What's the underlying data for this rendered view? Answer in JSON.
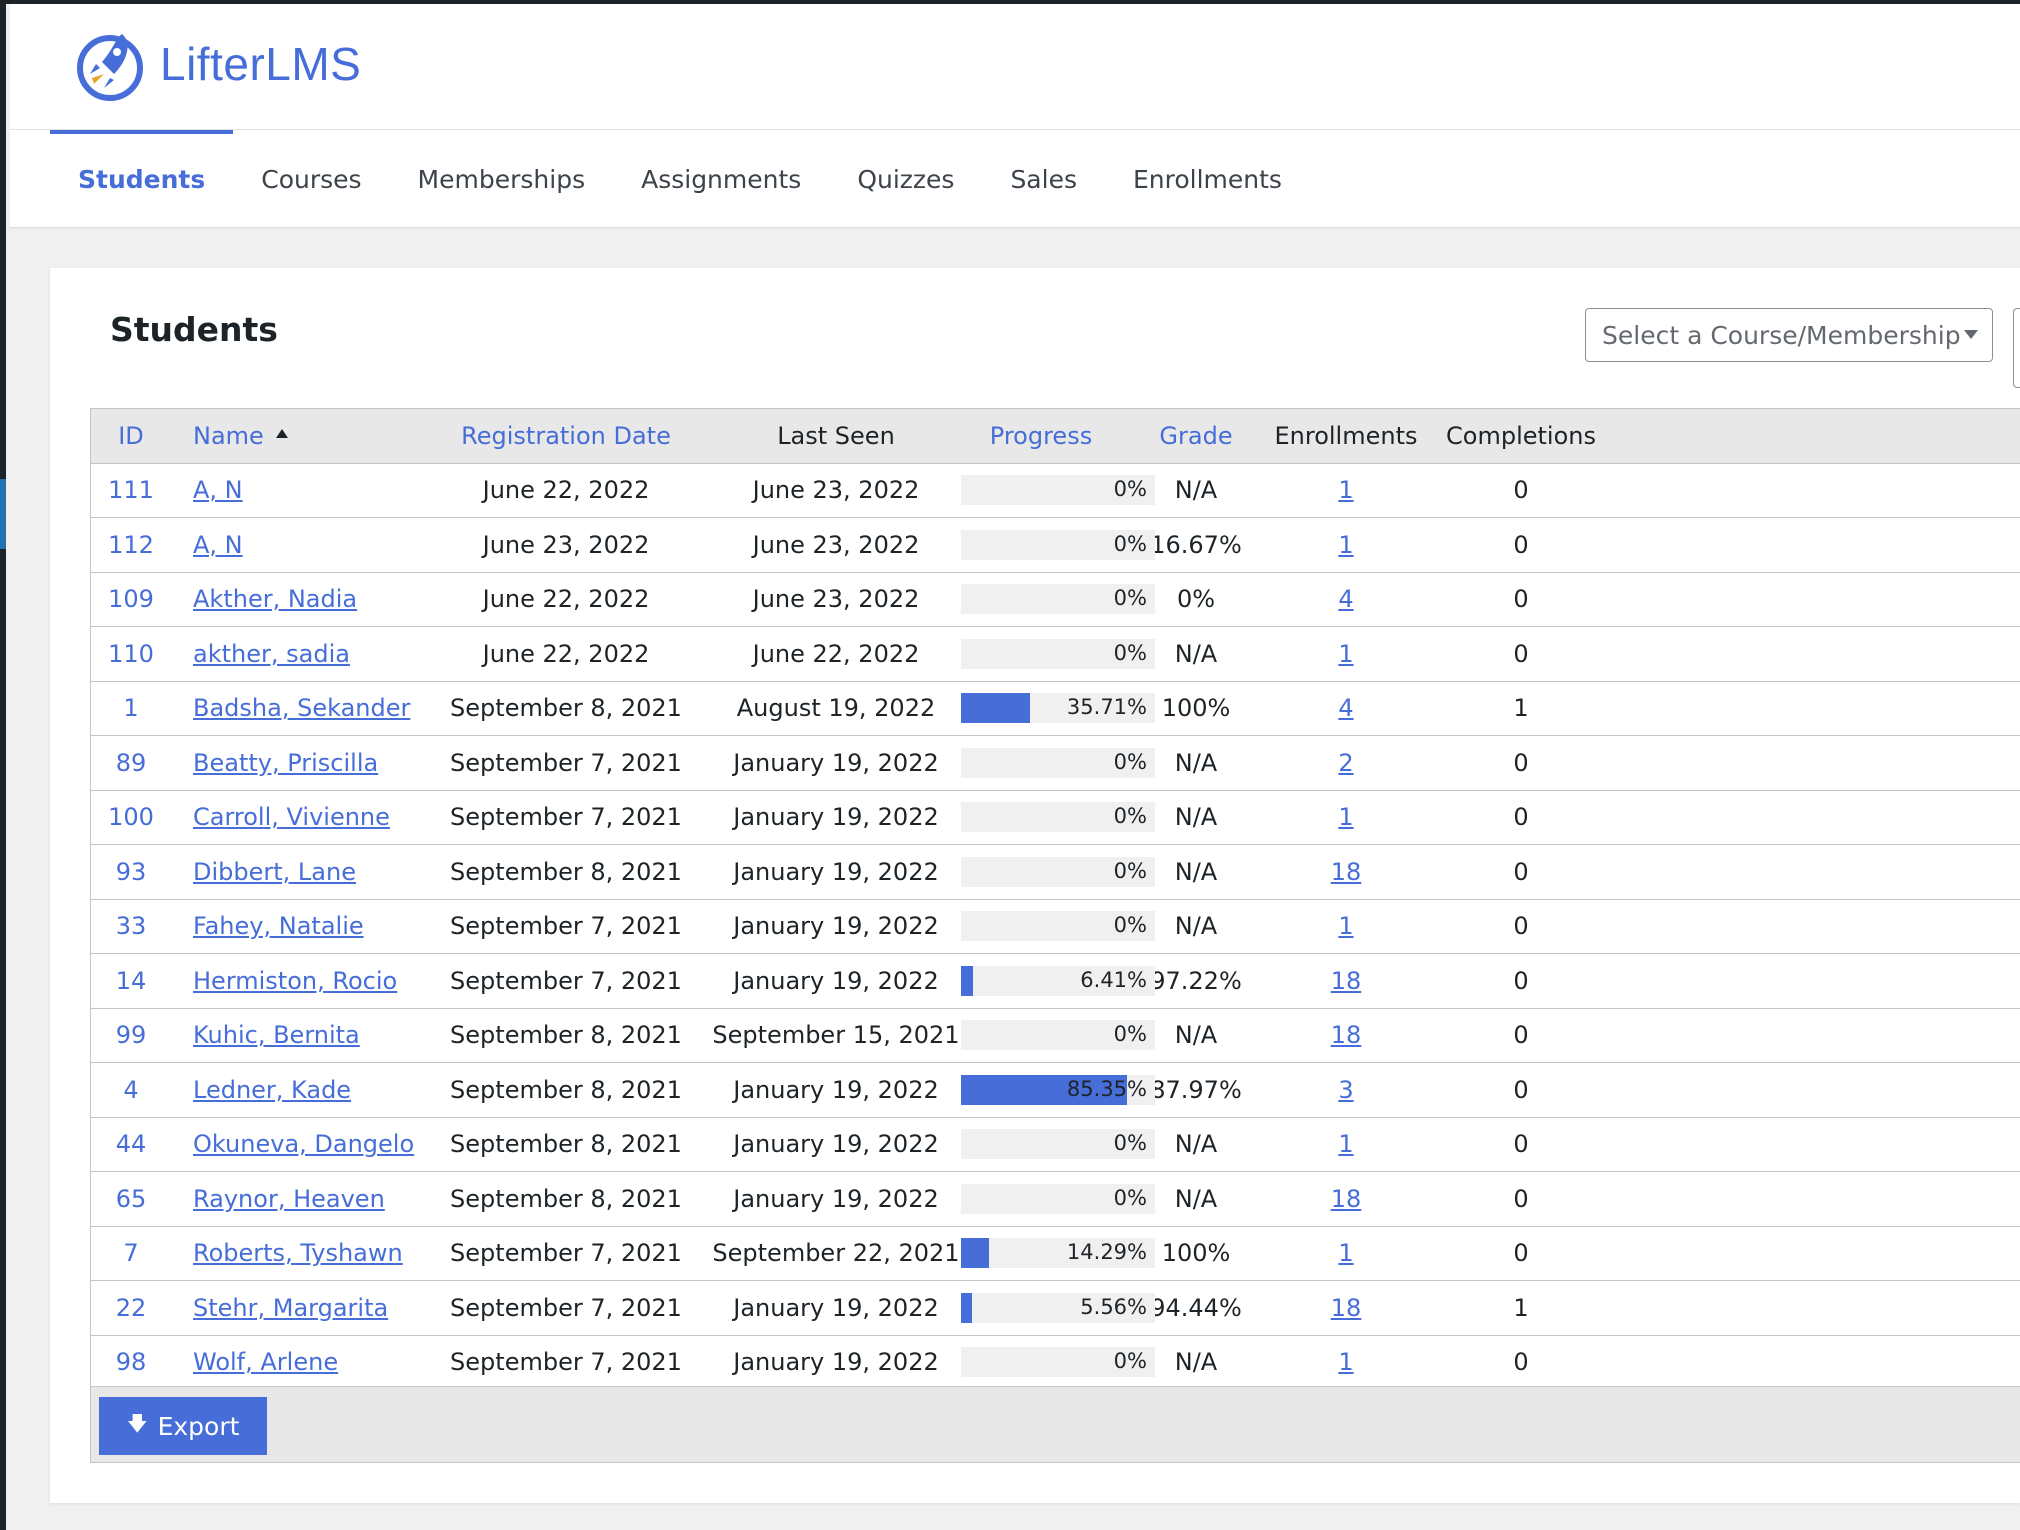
{
  "brand": {
    "name_part1": "Lifter",
    "name_part2": "LMS",
    "color": "#466dd8"
  },
  "nav": {
    "items": [
      {
        "label": "Students",
        "active": true
      },
      {
        "label": "Courses"
      },
      {
        "label": "Memberships"
      },
      {
        "label": "Assignments"
      },
      {
        "label": "Quizzes"
      },
      {
        "label": "Sales"
      },
      {
        "label": "Enrollments"
      }
    ]
  },
  "card": {
    "title": "Students"
  },
  "filter": {
    "placeholder": "Select a Course/Membership"
  },
  "table": {
    "columns": {
      "id": "ID",
      "name": "Name",
      "registration": "Registration Date",
      "last_seen": "Last Seen",
      "progress": "Progress",
      "grade": "Grade",
      "enrollments": "Enrollments",
      "completions": "Completions"
    },
    "rows": [
      {
        "id": "111",
        "name": "A, N",
        "registration": "June 22, 2022",
        "last_seen": "June 23, 2022",
        "progress": 0,
        "progress_label": "0%",
        "grade": "N/A",
        "enrollments": "1",
        "completions": "0"
      },
      {
        "id": "112",
        "name": "A, N",
        "registration": "June 23, 2022",
        "last_seen": "June 23, 2022",
        "progress": 0,
        "progress_label": "0%",
        "grade": "16.67%",
        "enrollments": "1",
        "completions": "0"
      },
      {
        "id": "109",
        "name": "Akther, Nadia",
        "registration": "June 22, 2022",
        "last_seen": "June 23, 2022",
        "progress": 0,
        "progress_label": "0%",
        "grade": "0%",
        "enrollments": "4",
        "completions": "0"
      },
      {
        "id": "110",
        "name": "akther, sadia",
        "registration": "June 22, 2022",
        "last_seen": "June 22, 2022",
        "progress": 0,
        "progress_label": "0%",
        "grade": "N/A",
        "enrollments": "1",
        "completions": "0"
      },
      {
        "id": "1",
        "name": "Badsha, Sekander",
        "registration": "September 8, 2021",
        "last_seen": "August 19, 2022",
        "progress": 35.71,
        "progress_label": "35.71%",
        "grade": "100%",
        "enrollments": "4",
        "completions": "1"
      },
      {
        "id": "89",
        "name": "Beatty, Priscilla",
        "registration": "September 7, 2021",
        "last_seen": "January 19, 2022",
        "progress": 0,
        "progress_label": "0%",
        "grade": "N/A",
        "enrollments": "2",
        "completions": "0"
      },
      {
        "id": "100",
        "name": "Carroll, Vivienne",
        "registration": "September 7, 2021",
        "last_seen": "January 19, 2022",
        "progress": 0,
        "progress_label": "0%",
        "grade": "N/A",
        "enrollments": "1",
        "completions": "0"
      },
      {
        "id": "93",
        "name": "Dibbert, Lane",
        "registration": "September 8, 2021",
        "last_seen": "January 19, 2022",
        "progress": 0,
        "progress_label": "0%",
        "grade": "N/A",
        "enrollments": "18",
        "completions": "0"
      },
      {
        "id": "33",
        "name": "Fahey, Natalie",
        "registration": "September 7, 2021",
        "last_seen": "January 19, 2022",
        "progress": 0,
        "progress_label": "0%",
        "grade": "N/A",
        "enrollments": "1",
        "completions": "0"
      },
      {
        "id": "14",
        "name": "Hermiston, Rocio",
        "registration": "September 7, 2021",
        "last_seen": "January 19, 2022",
        "progress": 6.41,
        "progress_label": "6.41%",
        "grade": "97.22%",
        "enrollments": "18",
        "completions": "0"
      },
      {
        "id": "99",
        "name": "Kuhic, Bernita",
        "registration": "September 8, 2021",
        "last_seen": "September 15, 2021",
        "progress": 0,
        "progress_label": "0%",
        "grade": "N/A",
        "enrollments": "18",
        "completions": "0"
      },
      {
        "id": "4",
        "name": "Ledner, Kade",
        "registration": "September 8, 2021",
        "last_seen": "January 19, 2022",
        "progress": 85.35,
        "progress_label": "85.35%",
        "grade": "87.97%",
        "enrollments": "3",
        "completions": "0"
      },
      {
        "id": "44",
        "name": "Okuneva, Dangelo",
        "registration": "September 8, 2021",
        "last_seen": "January 19, 2022",
        "progress": 0,
        "progress_label": "0%",
        "grade": "N/A",
        "enrollments": "1",
        "completions": "0"
      },
      {
        "id": "65",
        "name": "Raynor, Heaven",
        "registration": "September 8, 2021",
        "last_seen": "January 19, 2022",
        "progress": 0,
        "progress_label": "0%",
        "grade": "N/A",
        "enrollments": "18",
        "completions": "0"
      },
      {
        "id": "7",
        "name": "Roberts, Tyshawn",
        "registration": "September 7, 2021",
        "last_seen": "September 22, 2021",
        "progress": 14.29,
        "progress_label": "14.29%",
        "grade": "100%",
        "enrollments": "1",
        "completions": "0"
      },
      {
        "id": "22",
        "name": "Stehr, Margarita",
        "registration": "September 7, 2021",
        "last_seen": "January 19, 2022",
        "progress": 5.56,
        "progress_label": "5.56%",
        "grade": "94.44%",
        "enrollments": "18",
        "completions": "1"
      },
      {
        "id": "98",
        "name": "Wolf, Arlene",
        "registration": "September 7, 2021",
        "last_seen": "January 19, 2022",
        "progress": 0,
        "progress_label": "0%",
        "grade": "N/A",
        "enrollments": "1",
        "completions": "0"
      }
    ]
  },
  "footer": {
    "export_label": "Export",
    "export_icon": "download-icon"
  }
}
